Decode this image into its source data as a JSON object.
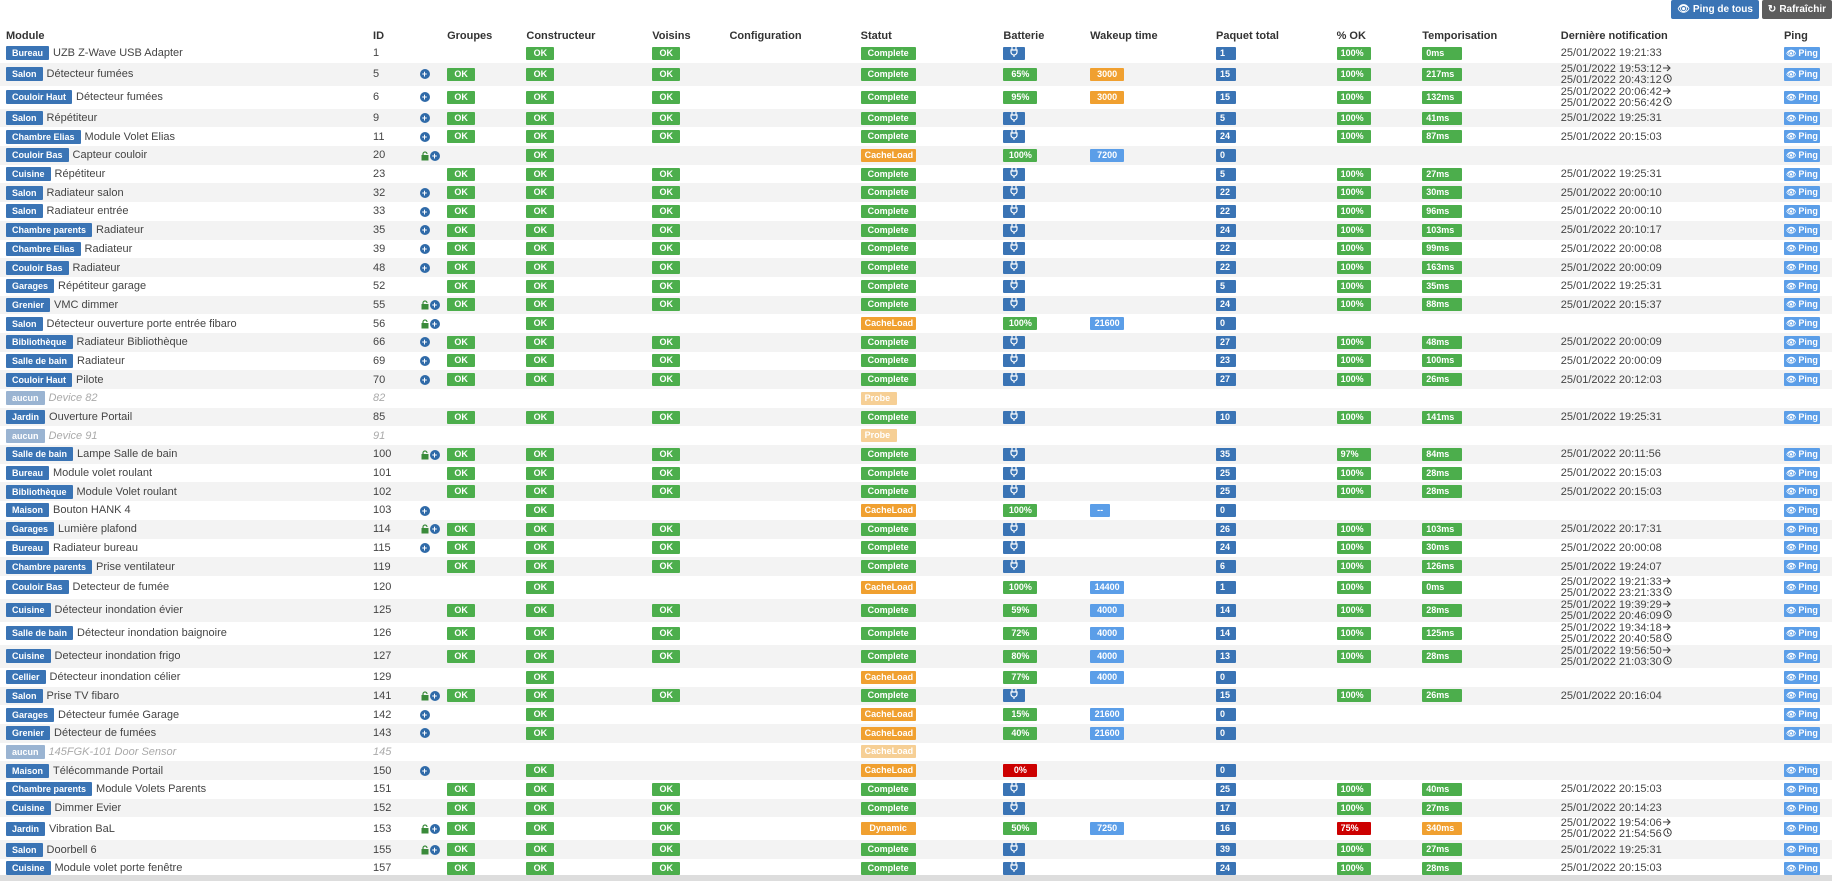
{
  "toolbar": {
    "ping_all": "Ping de tous",
    "refresh": "Rafraîchir"
  },
  "headers": [
    "Module",
    "ID",
    "Groupes",
    "Constructeur",
    "Voisins",
    "Configuration",
    "Statut",
    "Batterie",
    "Wakeup time",
    "Paquet total",
    "% OK",
    "Temporisation",
    "Dernière notification",
    "Ping"
  ],
  "ping_label": "Ping",
  "ok_label": "OK",
  "rows": [
    {
      "room": "Bureau",
      "name": "UZB Z-Wave USB Adapter",
      "id": "1",
      "icons": "",
      "groupes": "",
      "constructeur": "OK",
      "voisins": "OK",
      "statut": "Complete",
      "batterie": "plug",
      "wakeup": "",
      "paquet": "1",
      "pct": "100%",
      "tempo": "0ms",
      "notif": [
        "25/01/2022 19:21:33"
      ]
    },
    {
      "room": "Salon",
      "name": "Détecteur fumées",
      "id": "5",
      "icons": "plus",
      "groupes": "OK",
      "constructeur": "OK",
      "voisins": "OK",
      "statut": "Complete",
      "batterie": "65%",
      "wakeup": "3000",
      "wake_color": "orange",
      "paquet": "15",
      "pct": "100%",
      "tempo": "217ms",
      "notif": [
        "25/01/2022 19:53:12",
        "25/01/2022 20:43:12"
      ]
    },
    {
      "room": "Couloir Haut",
      "name": "Détecteur fumées",
      "id": "6",
      "icons": "plus",
      "groupes": "OK",
      "constructeur": "OK",
      "voisins": "OK",
      "statut": "Complete",
      "batterie": "95%",
      "wakeup": "3000",
      "wake_color": "orange",
      "paquet": "15",
      "pct": "100%",
      "tempo": "132ms",
      "notif": [
        "25/01/2022 20:06:42",
        "25/01/2022 20:56:42"
      ]
    },
    {
      "room": "Salon",
      "name": "Répétiteur",
      "id": "9",
      "icons": "plus",
      "groupes": "OK",
      "constructeur": "OK",
      "voisins": "OK",
      "statut": "Complete",
      "batterie": "plug",
      "wakeup": "",
      "paquet": "5",
      "pct": "100%",
      "tempo": "41ms",
      "notif": [
        "25/01/2022 19:25:31"
      ]
    },
    {
      "room": "Chambre Elias",
      "name": "Module Volet Elias",
      "id": "11",
      "icons": "plus",
      "groupes": "OK",
      "constructeur": "OK",
      "voisins": "OK",
      "statut": "Complete",
      "batterie": "plug",
      "wakeup": "",
      "paquet": "24",
      "pct": "100%",
      "tempo": "87ms",
      "notif": [
        "25/01/2022 20:15:03"
      ]
    },
    {
      "room": "Couloir Bas",
      "name": "Capteur couloir",
      "id": "20",
      "icons": "lockplus",
      "groupes": "",
      "constructeur": "OK",
      "voisins": "",
      "statut": "CacheLoad",
      "batterie": "100%",
      "wakeup": "7200",
      "wake_color": "blue",
      "paquet": "0",
      "pct": "",
      "tempo": "",
      "notif": []
    },
    {
      "room": "Cuisine",
      "name": "Répétiteur",
      "id": "23",
      "icons": "",
      "groupes": "OK",
      "constructeur": "OK",
      "voisins": "OK",
      "statut": "Complete",
      "batterie": "plug",
      "wakeup": "",
      "paquet": "5",
      "pct": "100%",
      "tempo": "27ms",
      "notif": [
        "25/01/2022 19:25:31"
      ]
    },
    {
      "room": "Salon",
      "name": "Radiateur salon",
      "id": "32",
      "icons": "plus",
      "groupes": "OK",
      "constructeur": "OK",
      "voisins": "OK",
      "statut": "Complete",
      "batterie": "plug",
      "wakeup": "",
      "paquet": "22",
      "pct": "100%",
      "tempo": "30ms",
      "notif": [
        "25/01/2022 20:00:10"
      ]
    },
    {
      "room": "Salon",
      "name": "Radiateur entrée",
      "id": "33",
      "icons": "plus",
      "groupes": "OK",
      "constructeur": "OK",
      "voisins": "OK",
      "statut": "Complete",
      "batterie": "plug",
      "wakeup": "",
      "paquet": "22",
      "pct": "100%",
      "tempo": "96ms",
      "notif": [
        "25/01/2022 20:00:10"
      ]
    },
    {
      "room": "Chambre parents",
      "name": "Radiateur",
      "id": "35",
      "icons": "plus",
      "groupes": "OK",
      "constructeur": "OK",
      "voisins": "OK",
      "statut": "Complete",
      "batterie": "plug",
      "wakeup": "",
      "paquet": "24",
      "pct": "100%",
      "tempo": "103ms",
      "notif": [
        "25/01/2022 20:10:17"
      ]
    },
    {
      "room": "Chambre Elias",
      "name": "Radiateur",
      "id": "39",
      "icons": "plus",
      "groupes": "OK",
      "constructeur": "OK",
      "voisins": "OK",
      "statut": "Complete",
      "batterie": "plug",
      "wakeup": "",
      "paquet": "22",
      "pct": "100%",
      "tempo": "99ms",
      "notif": [
        "25/01/2022 20:00:08"
      ]
    },
    {
      "room": "Couloir Bas",
      "name": "Radiateur",
      "id": "48",
      "icons": "plus",
      "groupes": "OK",
      "constructeur": "OK",
      "voisins": "OK",
      "statut": "Complete",
      "batterie": "plug",
      "wakeup": "",
      "paquet": "22",
      "pct": "100%",
      "tempo": "163ms",
      "notif": [
        "25/01/2022 20:00:09"
      ]
    },
    {
      "room": "Garages",
      "name": "Répétiteur garage",
      "id": "52",
      "icons": "",
      "groupes": "OK",
      "constructeur": "OK",
      "voisins": "OK",
      "statut": "Complete",
      "batterie": "plug",
      "wakeup": "",
      "paquet": "5",
      "pct": "100%",
      "tempo": "35ms",
      "notif": [
        "25/01/2022 19:25:31"
      ]
    },
    {
      "room": "Grenier",
      "name": "VMC dimmer",
      "id": "55",
      "icons": "lockplus",
      "groupes": "OK",
      "constructeur": "OK",
      "voisins": "OK",
      "statut": "Complete",
      "batterie": "plug",
      "wakeup": "",
      "paquet": "24",
      "pct": "100%",
      "tempo": "88ms",
      "notif": [
        "25/01/2022 20:15:37"
      ]
    },
    {
      "room": "Salon",
      "name": "Détecteur ouverture porte entrée fibaro",
      "id": "56",
      "icons": "lockplus",
      "groupes": "",
      "constructeur": "OK",
      "voisins": "",
      "statut": "CacheLoad",
      "batterie": "100%",
      "wakeup": "21600",
      "wake_color": "blue",
      "paquet": "0",
      "pct": "",
      "tempo": "",
      "notif": []
    },
    {
      "room": "Bibliothèque",
      "name": "Radiateur Bibliothèque",
      "id": "66",
      "icons": "plus",
      "groupes": "OK",
      "constructeur": "OK",
      "voisins": "OK",
      "statut": "Complete",
      "batterie": "plug",
      "wakeup": "",
      "paquet": "27",
      "pct": "100%",
      "tempo": "48ms",
      "notif": [
        "25/01/2022 20:00:09"
      ]
    },
    {
      "room": "Salle de bain",
      "name": "Radiateur",
      "id": "69",
      "icons": "plus",
      "groupes": "OK",
      "constructeur": "OK",
      "voisins": "OK",
      "statut": "Complete",
      "batterie": "plug",
      "wakeup": "",
      "paquet": "23",
      "pct": "100%",
      "tempo": "100ms",
      "notif": [
        "25/01/2022 20:00:09"
      ]
    },
    {
      "room": "Couloir Haut",
      "name": "Pilote",
      "id": "70",
      "icons": "plus",
      "groupes": "OK",
      "constructeur": "OK",
      "voisins": "OK",
      "statut": "Complete",
      "batterie": "plug",
      "wakeup": "",
      "paquet": "27",
      "pct": "100%",
      "tempo": "26ms",
      "notif": [
        "25/01/2022 20:12:03"
      ]
    },
    {
      "room": "aucun",
      "ghost": true,
      "name": "Device 82",
      "id": "82",
      "icons": "",
      "groupes": "",
      "constructeur": "",
      "voisins": "",
      "statut": "Probe",
      "batterie": "",
      "wakeup": "",
      "paquet": "",
      "pct": "",
      "tempo": "",
      "notif": []
    },
    {
      "room": "Jardin",
      "name": "Ouverture Portail",
      "id": "85",
      "icons": "",
      "groupes": "OK",
      "constructeur": "OK",
      "voisins": "OK",
      "statut": "Complete",
      "batterie": "plug",
      "wakeup": "",
      "paquet": "10",
      "pct": "100%",
      "tempo": "141ms",
      "notif": [
        "25/01/2022 19:25:31"
      ]
    },
    {
      "room": "aucun",
      "ghost": true,
      "name": "Device 91",
      "id": "91",
      "icons": "",
      "groupes": "",
      "constructeur": "",
      "voisins": "",
      "statut": "Probe",
      "batterie": "",
      "wakeup": "",
      "paquet": "",
      "pct": "",
      "tempo": "",
      "notif": []
    },
    {
      "room": "Salle de bain",
      "name": "Lampe Salle de bain",
      "id": "100",
      "icons": "lockplus",
      "groupes": "OK",
      "constructeur": "OK",
      "voisins": "OK",
      "statut": "Complete",
      "batterie": "plug",
      "wakeup": "",
      "paquet": "35",
      "pct": "97%",
      "tempo": "84ms",
      "notif": [
        "25/01/2022 20:11:56"
      ]
    },
    {
      "room": "Bureau",
      "name": "Module volet roulant",
      "id": "101",
      "icons": "",
      "groupes": "OK",
      "constructeur": "OK",
      "voisins": "OK",
      "statut": "Complete",
      "batterie": "plug",
      "wakeup": "",
      "paquet": "25",
      "pct": "100%",
      "tempo": "28ms",
      "notif": [
        "25/01/2022 20:15:03"
      ]
    },
    {
      "room": "Bibliothèque",
      "name": "Module Volet roulant",
      "id": "102",
      "icons": "",
      "groupes": "OK",
      "constructeur": "OK",
      "voisins": "OK",
      "statut": "Complete",
      "batterie": "plug",
      "wakeup": "",
      "paquet": "25",
      "pct": "100%",
      "tempo": "28ms",
      "notif": [
        "25/01/2022 20:15:03"
      ]
    },
    {
      "room": "Maison",
      "name": "Bouton HANK 4",
      "id": "103",
      "icons": "plus",
      "groupes": "",
      "constructeur": "OK",
      "voisins": "",
      "statut": "CacheLoad",
      "batterie": "100%",
      "wakeup": "--",
      "wake_color": "blue",
      "paquet": "0",
      "pct": "",
      "tempo": "",
      "notif": []
    },
    {
      "room": "Garages",
      "name": "Lumière plafond",
      "id": "114",
      "icons": "lockplus",
      "groupes": "OK",
      "constructeur": "OK",
      "voisins": "OK",
      "statut": "Complete",
      "batterie": "plug",
      "wakeup": "",
      "paquet": "26",
      "pct": "100%",
      "tempo": "103ms",
      "notif": [
        "25/01/2022 20:17:31"
      ]
    },
    {
      "room": "Bureau",
      "name": "Radiateur bureau",
      "id": "115",
      "icons": "plus",
      "groupes": "OK",
      "constructeur": "OK",
      "voisins": "OK",
      "statut": "Complete",
      "batterie": "plug",
      "wakeup": "",
      "paquet": "24",
      "pct": "100%",
      "tempo": "30ms",
      "notif": [
        "25/01/2022 20:00:08"
      ]
    },
    {
      "room": "Chambre parents",
      "name": "Prise ventilateur",
      "id": "119",
      "icons": "",
      "groupes": "OK",
      "constructeur": "OK",
      "voisins": "OK",
      "statut": "Complete",
      "batterie": "plug",
      "wakeup": "",
      "paquet": "6",
      "pct": "100%",
      "tempo": "126ms",
      "notif": [
        "25/01/2022 19:24:07"
      ]
    },
    {
      "room": "Couloir Bas",
      "name": "Detecteur de fumée",
      "id": "120",
      "icons": "",
      "groupes": "",
      "constructeur": "OK",
      "voisins": "",
      "statut": "CacheLoad",
      "batterie": "100%",
      "wakeup": "14400",
      "wake_color": "blue",
      "paquet": "1",
      "pct": "100%",
      "tempo": "0ms",
      "notif": [
        "25/01/2022 19:21:33",
        "25/01/2022 23:21:33"
      ]
    },
    {
      "room": "Cuisine",
      "name": "Détecteur inondation évier",
      "id": "125",
      "icons": "",
      "groupes": "OK",
      "constructeur": "OK",
      "voisins": "OK",
      "statut": "Complete",
      "batterie": "59%",
      "wakeup": "4000",
      "wake_color": "blue",
      "paquet": "14",
      "pct": "100%",
      "tempo": "28ms",
      "notif": [
        "25/01/2022 19:39:29",
        "25/01/2022 20:46:09"
      ]
    },
    {
      "room": "Salle de bain",
      "name": "Détecteur inondation baignoire",
      "id": "126",
      "icons": "",
      "groupes": "OK",
      "constructeur": "OK",
      "voisins": "OK",
      "statut": "Complete",
      "batterie": "72%",
      "wakeup": "4000",
      "wake_color": "blue",
      "paquet": "14",
      "pct": "100%",
      "tempo": "125ms",
      "notif": [
        "25/01/2022 19:34:18",
        "25/01/2022 20:40:58"
      ]
    },
    {
      "room": "Cuisine",
      "name": "Detecteur inondation frigo",
      "id": "127",
      "icons": "",
      "groupes": "OK",
      "constructeur": "OK",
      "voisins": "OK",
      "statut": "Complete",
      "batterie": "80%",
      "wakeup": "4000",
      "wake_color": "blue",
      "paquet": "13",
      "pct": "100%",
      "tempo": "28ms",
      "notif": [
        "25/01/2022 19:56:50",
        "25/01/2022 21:03:30"
      ]
    },
    {
      "room": "Cellier",
      "name": "Détecteur inondation célier",
      "id": "129",
      "icons": "",
      "groupes": "",
      "constructeur": "OK",
      "voisins": "",
      "statut": "CacheLoad",
      "batterie": "77%",
      "wakeup": "4000",
      "wake_color": "blue",
      "paquet": "0",
      "pct": "",
      "tempo": "",
      "notif": []
    },
    {
      "room": "Salon",
      "name": "Prise TV fibaro",
      "id": "141",
      "icons": "lockplus",
      "groupes": "OK",
      "constructeur": "OK",
      "voisins": "OK",
      "statut": "Complete",
      "batterie": "plug",
      "wakeup": "",
      "paquet": "15",
      "pct": "100%",
      "tempo": "26ms",
      "notif": [
        "25/01/2022 20:16:04"
      ]
    },
    {
      "room": "Garages",
      "name": "Détecteur fumée Garage",
      "id": "142",
      "icons": "plus",
      "groupes": "",
      "constructeur": "OK",
      "voisins": "",
      "statut": "CacheLoad",
      "batterie": "15%",
      "wakeup": "21600",
      "wake_color": "blue",
      "paquet": "0",
      "pct": "",
      "tempo": "",
      "notif": []
    },
    {
      "room": "Grenier",
      "name": "Détecteur de fumées",
      "id": "143",
      "icons": "plus",
      "groupes": "",
      "constructeur": "OK",
      "voisins": "",
      "statut": "CacheLoad",
      "batterie": "40%",
      "wakeup": "21600",
      "wake_color": "blue",
      "paquet": "0",
      "pct": "",
      "tempo": "",
      "notif": []
    },
    {
      "room": "aucun",
      "ghost": true,
      "name": "145FGK-101 Door Sensor",
      "id": "145",
      "icons": "",
      "groupes": "",
      "constructeur": "",
      "voisins": "",
      "statut": "CacheLoad",
      "batterie": "",
      "wakeup": "",
      "paquet": "",
      "pct": "",
      "tempo": "",
      "notif": []
    },
    {
      "room": "Maison",
      "name": "Télécommande Portail",
      "id": "150",
      "icons": "plus",
      "groupes": "",
      "constructeur": "OK",
      "voisins": "",
      "statut": "CacheLoad",
      "batterie": "0%",
      "batt_color": "red",
      "wakeup": "",
      "paquet": "0",
      "pct": "",
      "tempo": "",
      "notif": []
    },
    {
      "room": "Chambre parents",
      "name": "Module Volets Parents",
      "id": "151",
      "icons": "",
      "groupes": "OK",
      "constructeur": "OK",
      "voisins": "OK",
      "statut": "Complete",
      "batterie": "plug",
      "wakeup": "",
      "paquet": "25",
      "pct": "100%",
      "tempo": "40ms",
      "notif": [
        "25/01/2022 20:15:03"
      ]
    },
    {
      "room": "Cuisine",
      "name": "Dimmer Evier",
      "id": "152",
      "icons": "",
      "groupes": "OK",
      "constructeur": "OK",
      "voisins": "OK",
      "statut": "Complete",
      "batterie": "plug",
      "wakeup": "",
      "paquet": "17",
      "pct": "100%",
      "tempo": "27ms",
      "notif": [
        "25/01/2022 20:14:23"
      ]
    },
    {
      "room": "Jardin",
      "name": "Vibration BaL",
      "id": "153",
      "icons": "lockplus",
      "groupes": "OK",
      "constructeur": "OK",
      "voisins": "OK",
      "statut": "Dynamic",
      "batterie": "50%",
      "wakeup": "7250",
      "wake_color": "blue",
      "paquet": "16",
      "pct": "75%",
      "pct_bad": true,
      "tempo": "340ms",
      "tempo_warn": true,
      "notif": [
        "25/01/2022 19:54:06",
        "25/01/2022 21:54:56"
      ]
    },
    {
      "room": "Salon",
      "name": "Doorbell 6",
      "id": "155",
      "icons": "lockplus",
      "groupes": "OK",
      "constructeur": "OK",
      "voisins": "OK",
      "statut": "Complete",
      "batterie": "plug",
      "wakeup": "",
      "paquet": "39",
      "pct": "100%",
      "tempo": "27ms",
      "notif": [
        "25/01/2022 19:25:31"
      ]
    },
    {
      "room": "Cuisine",
      "name": "Module volet porte fenêtre",
      "id": "157",
      "icons": "",
      "groupes": "OK",
      "constructeur": "OK",
      "voisins": "OK",
      "statut": "Complete",
      "batterie": "plug",
      "wakeup": "",
      "paquet": "24",
      "pct": "100%",
      "tempo": "28ms",
      "notif": [
        "25/01/2022 20:15:03"
      ]
    }
  ],
  "colors": {
    "blue": "#3a74b5",
    "green": "#4cae4c",
    "orange": "#f0a030",
    "red": "#cc0000",
    "light_blue": "#5b9ee8"
  }
}
